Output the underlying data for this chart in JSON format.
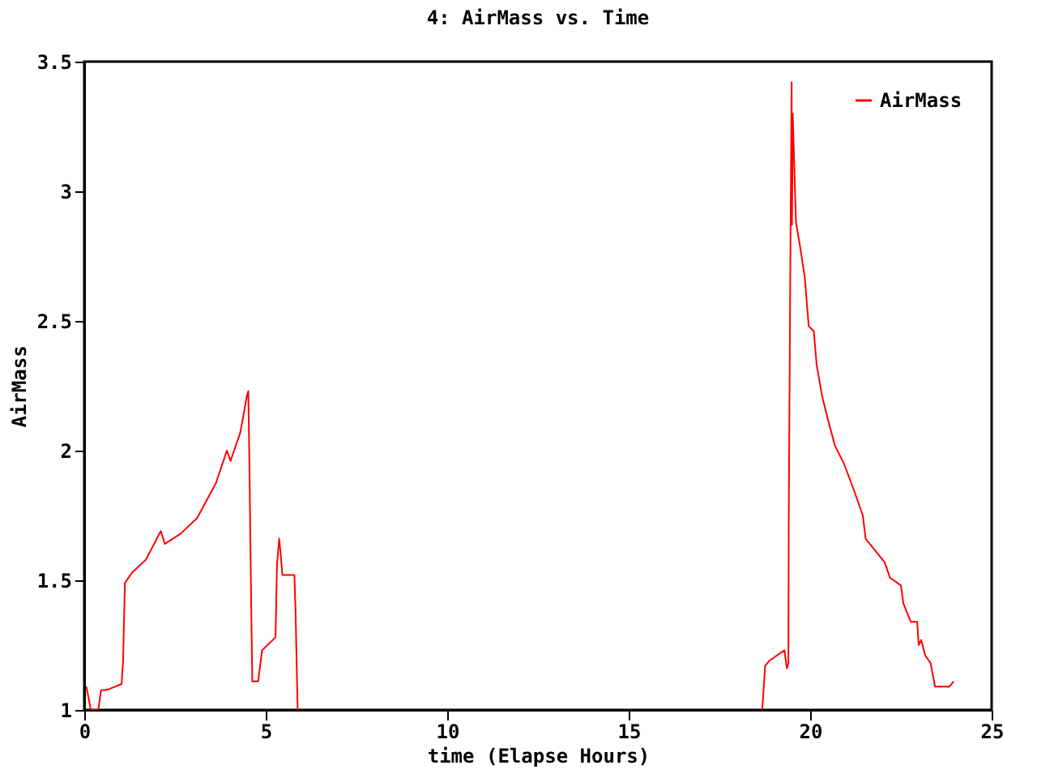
{
  "chart_data": {
    "type": "line",
    "title": "4: AirMass vs. Time",
    "xlabel": "time (Elapse Hours)",
    "ylabel": "AirMass",
    "xlim": [
      0,
      25
    ],
    "xticks": [
      0,
      5,
      10,
      15,
      20,
      25
    ],
    "ylim": [
      1,
      3.5
    ],
    "yticks": [
      1,
      1.5,
      2,
      2.5,
      3,
      3.5
    ],
    "grid": false,
    "legend": "top right",
    "marker": "none",
    "line_style": "solid",
    "x": [
      0.06,
      0.18,
      0.39,
      0.46,
      0.68,
      1.03,
      1.07,
      1.12,
      1.32,
      1.7,
      2.11,
      2.22,
      2.66,
      3.11,
      3.63,
      3.93,
      4.03,
      4.3,
      4.48,
      4.52,
      4.55,
      4.6,
      4.63,
      4.79,
      4.9,
      5.27,
      5.31,
      5.37,
      5.4,
      5.46,
      5.79,
      5.82,
      5.86,
      5.88,
      12,
      18.68,
      18.76,
      18.88,
      19.29,
      19.36,
      19.4,
      19.41,
      19.46,
      19.49,
      19.5,
      19.52,
      19.57,
      19.61,
      19.73,
      19.85,
      19.96,
      20.1,
      20.18,
      20.33,
      20.48,
      20.68,
      20.93,
      21.2,
      21.45,
      21.53,
      22.05,
      22.2,
      22.5,
      22.57,
      22.77,
      22.95,
      22.99,
      23.06,
      23.17,
      23.32,
      23.44,
      23.84,
      23.95
    ],
    "series": [
      {
        "name": "AirMass",
        "color": "#ff0000",
        "values": [
          1.09,
          1.0,
          1.0,
          1.075,
          1.08,
          1.1,
          1.19,
          1.49,
          1.53,
          1.58,
          1.69,
          1.64,
          1.68,
          1.74,
          1.875,
          2.0,
          1.96,
          2.07,
          2.21,
          2.23,
          1.95,
          1.4,
          1.11,
          1.11,
          1.23,
          1.28,
          1.56,
          1.66,
          1.62,
          1.52,
          1.52,
          1.39,
          1.125,
          1.0,
          null,
          1.0,
          1.17,
          1.19,
          1.23,
          1.16,
          1.18,
          1.73,
          2.85,
          3.42,
          2.87,
          3.3,
          3.06,
          2.88,
          2.78,
          2.67,
          2.48,
          2.46,
          2.33,
          2.21,
          2.125,
          2.02,
          1.95,
          1.85,
          1.75,
          1.66,
          1.57,
          1.51,
          1.48,
          1.41,
          1.34,
          1.34,
          1.25,
          1.27,
          1.21,
          1.18,
          1.09,
          1.09,
          1.11
        ]
      }
    ]
  }
}
